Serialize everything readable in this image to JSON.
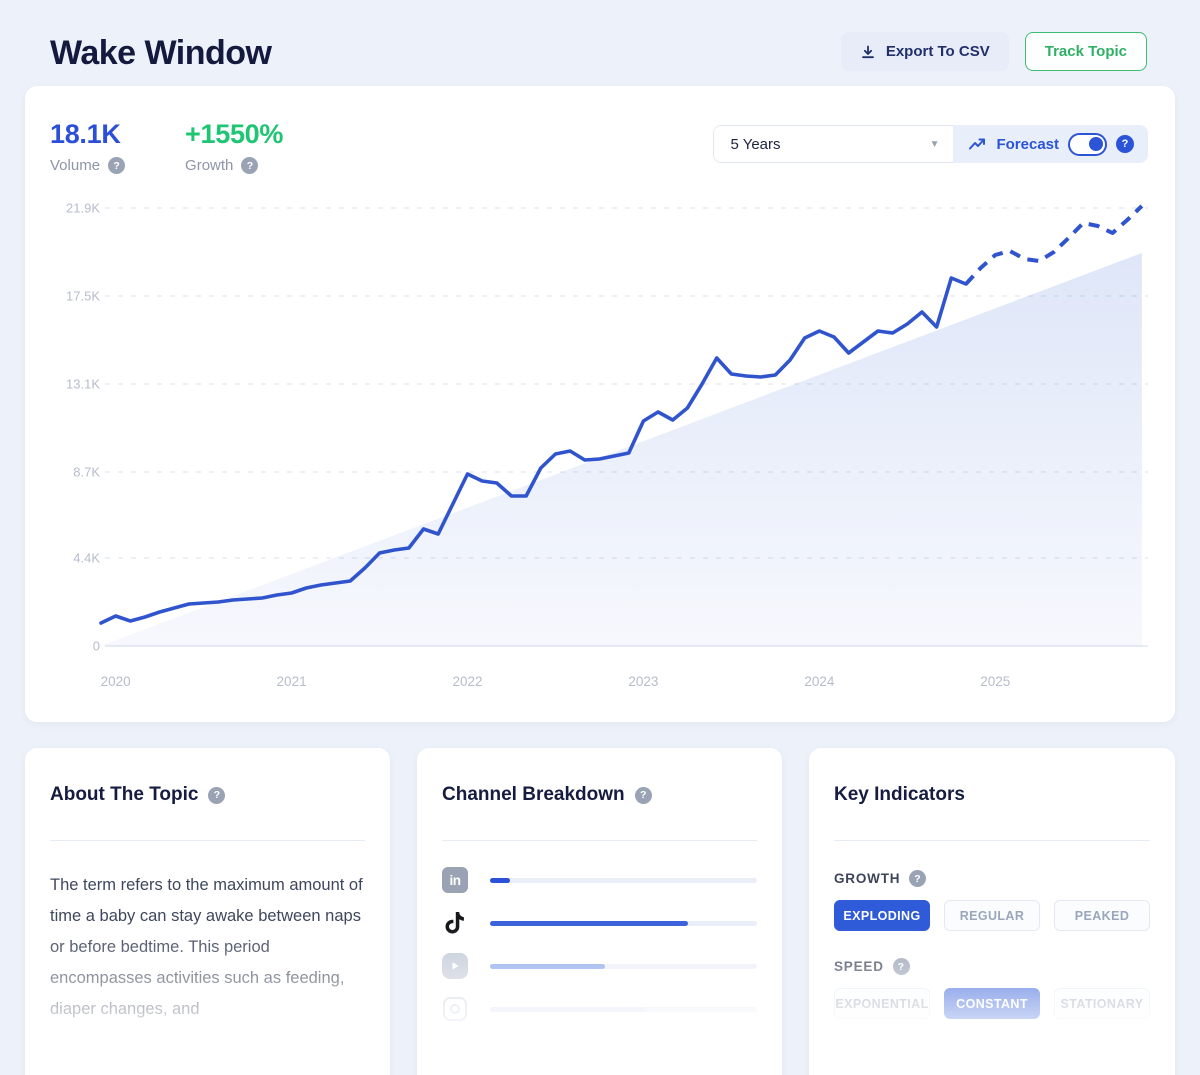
{
  "page": {
    "title": "Wake Window"
  },
  "header": {
    "export_button": "Export To CSV",
    "track_button": "Track Topic"
  },
  "stats": {
    "volume_value": "18.1K",
    "volume_label": "Volume",
    "growth_value": "+1550%",
    "growth_label": "Growth"
  },
  "controls": {
    "range_selected": "5 Years",
    "forecast_label": "Forecast",
    "forecast_on": true
  },
  "chart_data": {
    "type": "line",
    "title": "Wake Window search volume, 5 years with forecast",
    "x_tick_labels": [
      "2020",
      "2021",
      "2022",
      "2023",
      "2024",
      "2025"
    ],
    "x_tick_month_index": [
      1,
      13,
      25,
      37,
      49,
      61
    ],
    "y_tick_labels": [
      "0",
      "4.4K",
      "8.7K",
      "13.1K",
      "17.5K",
      "21.9K"
    ],
    "y_tick_values": [
      0,
      4400,
      8700,
      13100,
      17500,
      21900
    ],
    "ylim": [
      0,
      21900
    ],
    "months_start": "2019-12",
    "months_end": "2025-11",
    "values": [
      1150,
      1500,
      1250,
      1450,
      1700,
      1900,
      2100,
      2150,
      2200,
      2300,
      2350,
      2400,
      2550,
      2650,
      2900,
      3050,
      3150,
      3250,
      3900,
      4650,
      4800,
      4900,
      5850,
      5600,
      7100,
      8600,
      8250,
      8150,
      7500,
      7500,
      8900,
      9600,
      9750,
      9300,
      9350,
      9500,
      9650,
      11250,
      11700,
      11300,
      11900,
      13100,
      14400,
      13600,
      13500,
      13450,
      13550,
      14300,
      15400,
      15750,
      15450,
      14650,
      15200,
      15750,
      15650,
      16100,
      16700,
      15950,
      18400,
      18100,
      18900,
      19550,
      19750,
      19350,
      19250,
      19700,
      20400,
      21150,
      21000,
      20650,
      21300,
      22000
    ],
    "forecast_start_index": 59,
    "area_fill": true,
    "area_trend_end_value": 19650,
    "grid": "dashed-horizontal",
    "legend": "none",
    "line_color": "#3054cd",
    "grid_color": "#dbe1eb",
    "axis_label_color": "#b5bdcb"
  },
  "cards": {
    "about": {
      "title": "About The Topic",
      "text": "The term refers to the maximum amount of time a baby can stay awake between naps or before bedtime. This period encompasses activities such as feeding, diaper changes, and"
    },
    "channels": {
      "title": "Channel Breakdown",
      "rows": [
        {
          "icon": "linkedin-icon",
          "percent": 7.5,
          "color": "#2b50d9"
        },
        {
          "icon": "tiktok-icon",
          "percent": 74,
          "color": "#3c62dc"
        },
        {
          "icon": "youtube-icon",
          "percent": 43,
          "color": "#8ca7ea"
        },
        {
          "icon": "instagram-icon",
          "percent": 58,
          "color": "#d9e1f2"
        }
      ]
    },
    "indicators": {
      "title": "Key Indicators",
      "groups": [
        {
          "label": "GROWTH",
          "options": [
            "EXPLODING",
            "REGULAR",
            "PEAKED"
          ],
          "selected": "EXPLODING"
        },
        {
          "label": "SPEED",
          "options": [
            "EXPONENTIAL",
            "CONSTANT",
            "STATIONARY"
          ],
          "selected": "CONSTANT"
        }
      ]
    }
  },
  "colors": {
    "accent_blue": "#2b4fd9",
    "growth_green": "#1ec573",
    "page_bg": "#edf1f9",
    "forecast_bg": "#e9eefb",
    "track_green": "#3dbd71"
  }
}
